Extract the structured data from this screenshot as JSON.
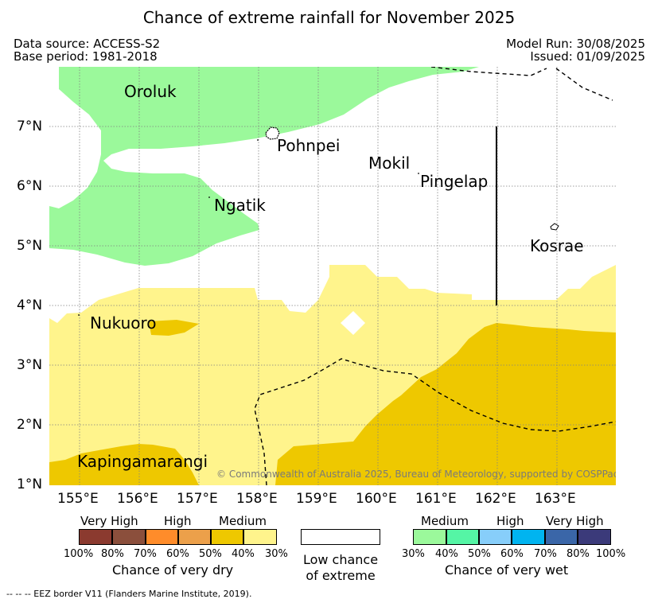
{
  "title": "Chance of extreme rainfall for November 2025",
  "header": {
    "data_source": "Data source: ACCESS-S2",
    "base_period": "Base period: 1981-2018",
    "model_run": "Model Run: 30/08/2025",
    "issued": "Issued: 01/09/2025"
  },
  "map": {
    "lon_ticks": [
      "155°E",
      "156°E",
      "157°E",
      "158°E",
      "159°E",
      "160°E",
      "161°E",
      "162°E",
      "163°E"
    ],
    "lat_ticks": [
      "7°N",
      "6°N",
      "5°N",
      "4°N",
      "3°N",
      "2°N",
      "1°N"
    ],
    "places": {
      "oroluk": "Oroluk",
      "pohnpei": "Pohnpei",
      "mokil": "Mokil",
      "pingelap": "Pingelap",
      "ngatik": "Ngatik",
      "kosrae": "Kosrae",
      "nukuoro": "Nukuoro",
      "kapingamarangi": "Kapingamarangi"
    },
    "copyright": "© Commonwealth of Australia 2025, Bureau of Meteorology, supported by COSPPac"
  },
  "legend": {
    "dry": {
      "levels": [
        "Very High",
        "High",
        "Medium"
      ],
      "colors": [
        "#8b3a2f",
        "#8b4f3c",
        "#ff8c2a",
        "#eca04a",
        "#eec800",
        "#fff48c"
      ],
      "pcts": [
        "100%",
        "80%",
        "70%",
        "60%",
        "50%",
        "40%",
        "30%"
      ],
      "caption": "Chance of very dry"
    },
    "neutral": {
      "caption_line1": "Low chance",
      "caption_line2": "of extreme",
      "color": "#ffffff"
    },
    "wet": {
      "levels": [
        "Medium",
        "High",
        "Very High"
      ],
      "colors": [
        "#9bf99b",
        "#55f5a5",
        "#87cefa",
        "#00b4f0",
        "#3a66a8",
        "#3b3a7a"
      ],
      "pcts": [
        "30%",
        "40%",
        "50%",
        "60%",
        "70%",
        "80%",
        "100%"
      ],
      "caption": "Chance of very wet"
    }
  },
  "colors": {
    "wet_medium": "#9bf99b",
    "dry_medium": "#eec800",
    "dry_low": "#fff48c"
  },
  "footnote": "-- -- -- EEZ border V11 (Flanders Marine Institute, 2019)."
}
